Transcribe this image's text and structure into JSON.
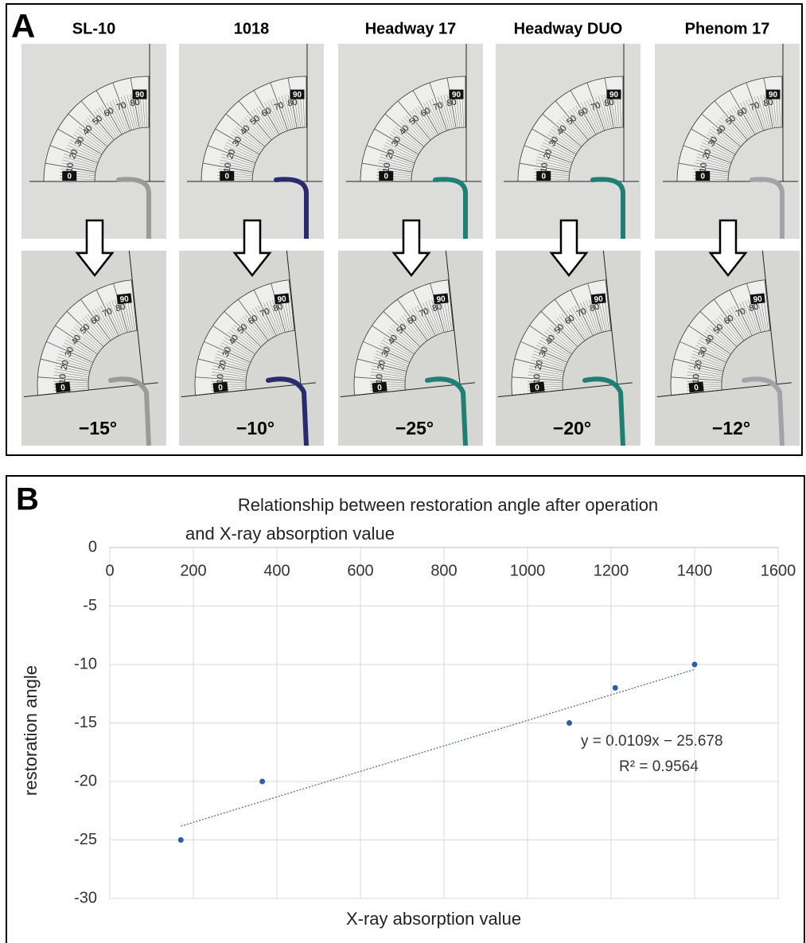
{
  "panel_a": {
    "label": "A",
    "names": [
      "SL-10",
      "1018",
      "Headway 17",
      "Headway DUO",
      "Phenom 17"
    ],
    "angles": [
      "−15°",
      "−10°",
      "−25°",
      "−20°",
      "−12°"
    ],
    "scale_labels": [
      "0",
      "10",
      "20",
      "30",
      "40",
      "50",
      "60",
      "70",
      "80",
      "90"
    ]
  },
  "chart_data": {
    "type": "scatter",
    "panel_label": "B",
    "title": [
      "Relationship between restoration angle after operation",
      "and X-ray absorption value"
    ],
    "xlabel": "X-ray absorption value",
    "ylabel": "restoration angle",
    "x": [
      170,
      365,
      1100,
      1210,
      1400
    ],
    "values": [
      -25,
      -20,
      -15,
      -12,
      -10
    ],
    "color": "#2e5ca8",
    "xlim": [
      0,
      1600
    ],
    "xticks": [
      0,
      200,
      400,
      600,
      800,
      1000,
      1200,
      1400,
      1600
    ],
    "ylim": [
      -30,
      0
    ],
    "yticks": [
      0,
      -5,
      -10,
      -15,
      -20,
      -25,
      -30
    ],
    "grid": true,
    "trendline": {
      "slope": 0.0109,
      "intercept": -25.678,
      "label": "y = 0.0109x − 25.678",
      "r2_label": "R² = 0.9564",
      "color": "#4a6fb0"
    }
  }
}
